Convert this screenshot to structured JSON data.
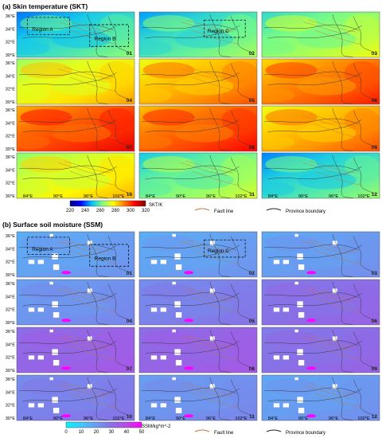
{
  "chart_data": [
    {
      "type": "heatmap",
      "title": "(a)  Skin temperature (SKT)",
      "panels": [
        "01",
        "02",
        "03",
        "04",
        "05",
        "06",
        "07",
        "08",
        "09",
        "10",
        "11",
        "12"
      ],
      "panel_mean_skt_K": [
        255,
        258,
        266,
        278,
        287,
        293,
        298,
        296,
        287,
        276,
        263,
        256
      ],
      "regions": [
        "Region A",
        "Region B",
        "Region C"
      ],
      "lat_ticks": [
        "36°E",
        "34°E",
        "32°E",
        "30°E"
      ],
      "lon_ticks": [
        "84°E",
        "90°E",
        "96°E",
        "102°E"
      ],
      "colorbar": {
        "ticks": [
          "220",
          "240",
          "260",
          "280",
          "300",
          "320"
        ],
        "label": "SKT/K",
        "range": [
          220,
          320
        ],
        "colors": [
          "#00007f",
          "#0000ff",
          "#00bfff",
          "#7fff7f",
          "#ffff00",
          "#ff7f00",
          "#ff0000",
          "#7f0000"
        ]
      },
      "legend": [
        {
          "name": "Fault line",
          "color": "#c8763a"
        },
        {
          "name": "Province boundary",
          "color": "#222222"
        }
      ]
    },
    {
      "type": "heatmap",
      "title": "(b)  Surface soil moisture (SSM)",
      "panels": [
        "01",
        "02",
        "03",
        "04",
        "05",
        "06",
        "07",
        "08",
        "09",
        "10",
        "11",
        "12"
      ],
      "panel_mean_ssm": [
        19,
        19,
        20,
        22,
        26,
        30,
        33,
        33,
        30,
        26,
        22,
        20
      ],
      "regions": [
        "Region A",
        "Region B",
        "Region C"
      ],
      "lat_ticks": [
        "36°E",
        "34°E",
        "32°E",
        "30°E"
      ],
      "lon_ticks": [
        "84°E",
        "90°E",
        "96°E",
        "102°E"
      ],
      "colorbar": {
        "ticks": [
          "0",
          "10",
          "20",
          "30",
          "40",
          "50"
        ],
        "label": "SSM/kg*m^-2",
        "range": [
          0,
          50
        ],
        "colors": [
          "#00f5ff",
          "#40c8ff",
          "#6a9cf0",
          "#8a6ee6",
          "#b84ae6",
          "#ff00ff"
        ]
      },
      "legend": [
        {
          "name": "Fault line",
          "color": "#c8763a"
        },
        {
          "name": "Province boundary",
          "color": "#222222"
        }
      ]
    }
  ]
}
